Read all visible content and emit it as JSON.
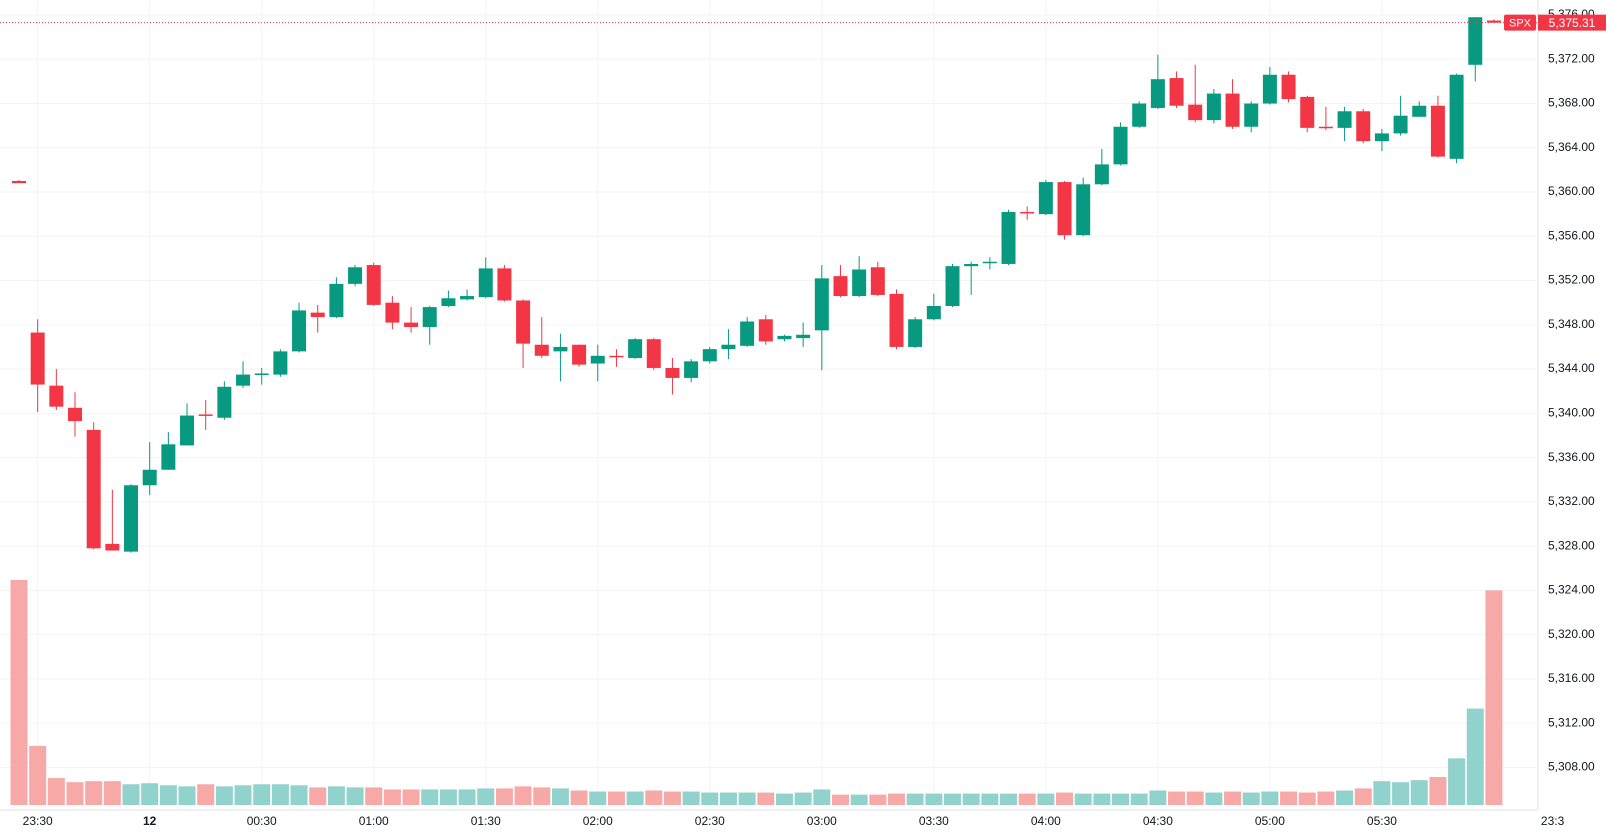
{
  "chart_data": {
    "type": "candlestick",
    "symbol": "SPX",
    "last_price": {
      "value": 5375.31,
      "label": "5,375.31"
    },
    "up_color": "#089981",
    "down_color": "#f23645",
    "volume_up_color": "#92d2cc",
    "volume_down_color": "#f7a9a7",
    "grid": true,
    "categories": [
      null,
      "23:30",
      null,
      null,
      null,
      null,
      null,
      "12",
      null,
      null,
      null,
      null,
      null,
      "00:30",
      null,
      null,
      null,
      null,
      null,
      "01:00",
      null,
      null,
      null,
      null,
      null,
      "01:30",
      null,
      null,
      null,
      null,
      null,
      "02:00",
      null,
      null,
      null,
      null,
      null,
      "02:30",
      null,
      null,
      null,
      null,
      null,
      "03:00",
      null,
      null,
      null,
      null,
      null,
      "03:30",
      null,
      null,
      null,
      null,
      null,
      "04:00",
      null,
      null,
      null,
      null,
      null,
      "04:30",
      null,
      null,
      null,
      null,
      null,
      "05:00",
      null,
      null,
      null,
      null,
      null,
      "05:30",
      null,
      null,
      null,
      null,
      null,
      null
    ],
    "next_session_label": "23:3",
    "ohlc": [
      [
        5361,
        5361.1,
        5360.8,
        5360.8
      ],
      [
        5347.3,
        5348.5,
        5340.1,
        5342.6
      ],
      [
        5342.5,
        5344,
        5340.3,
        5340.6
      ],
      [
        5340.5,
        5341.9,
        5337.9,
        5339.3
      ],
      [
        5338.5,
        5339.2,
        5327.7,
        5327.8
      ],
      [
        5328.2,
        5333.1,
        5327.6,
        5327.6
      ],
      [
        5327.5,
        5333.6,
        5327.4,
        5333.5
      ],
      [
        5333.5,
        5337.4,
        5332.6,
        5334.9
      ],
      [
        5334.9,
        5338.3,
        5334.9,
        5337.2
      ],
      [
        5337.1,
        5340.9,
        5337.1,
        5339.8
      ],
      [
        5339.9,
        5341.2,
        5338.5,
        5339.8
      ],
      [
        5339.6,
        5342.9,
        5339.4,
        5342.4
      ],
      [
        5342.5,
        5344.7,
        5342.3,
        5343.5
      ],
      [
        5343.5,
        5344.1,
        5342.6,
        5343.6
      ],
      [
        5343.5,
        5345.8,
        5343.3,
        5345.6
      ],
      [
        5345.6,
        5350,
        5345.5,
        5349.3
      ],
      [
        5349.1,
        5349.8,
        5347.3,
        5348.7
      ],
      [
        5348.7,
        5352.3,
        5348.6,
        5351.7
      ],
      [
        5351.7,
        5353.4,
        5351.5,
        5353.2
      ],
      [
        5353.4,
        5353.6,
        5349.7,
        5349.8
      ],
      [
        5350,
        5350.6,
        5347.6,
        5348.2
      ],
      [
        5348.2,
        5349.6,
        5347.3,
        5347.8
      ],
      [
        5347.8,
        5349.7,
        5346.2,
        5349.6
      ],
      [
        5349.7,
        5351.1,
        5349.6,
        5350.4
      ],
      [
        5350.3,
        5351.2,
        5350.2,
        5350.6
      ],
      [
        5350.5,
        5354.1,
        5350.4,
        5353.1
      ],
      [
        5353.1,
        5353.4,
        5350.1,
        5350.2
      ],
      [
        5350.2,
        5350.3,
        5344.1,
        5346.3
      ],
      [
        5346.2,
        5348.7,
        5345,
        5345.2
      ],
      [
        5345.6,
        5347.2,
        5342.9,
        5346
      ],
      [
        5346.2,
        5346.2,
        5344.2,
        5344.4
      ],
      [
        5344.5,
        5346.2,
        5342.9,
        5345.2
      ],
      [
        5345.2,
        5345.8,
        5344.2,
        5345.1
      ],
      [
        5345,
        5346.8,
        5344.9,
        5346.7
      ],
      [
        5346.7,
        5346.8,
        5343.9,
        5344.1
      ],
      [
        5344.1,
        5345,
        5341.7,
        5343.2
      ],
      [
        5343.2,
        5344.9,
        5342.8,
        5344.7
      ],
      [
        5344.7,
        5346,
        5344.5,
        5345.8
      ],
      [
        5345.8,
        5347.6,
        5344.9,
        5346.2
      ],
      [
        5346.1,
        5348.7,
        5346,
        5348.3
      ],
      [
        5348.5,
        5348.9,
        5346.2,
        5346.5
      ],
      [
        5346.7,
        5347.1,
        5346.5,
        5347
      ],
      [
        5346.8,
        5348.2,
        5346,
        5347.1
      ],
      [
        5347.5,
        5353.4,
        5343.9,
        5352.2
      ],
      [
        5352.4,
        5353.4,
        5350.5,
        5350.6
      ],
      [
        5350.6,
        5354.2,
        5350.5,
        5353
      ],
      [
        5353.2,
        5353.7,
        5350.6,
        5350.7
      ],
      [
        5350.8,
        5351.2,
        5345.8,
        5346
      ],
      [
        5346,
        5348.7,
        5345.9,
        5348.5
      ],
      [
        5348.5,
        5350.8,
        5348.4,
        5349.7
      ],
      [
        5349.7,
        5353.5,
        5349.6,
        5353.3
      ],
      [
        5353.3,
        5353.7,
        5350.7,
        5353.5
      ],
      [
        5353.6,
        5354.1,
        5353,
        5353.7
      ],
      [
        5353.5,
        5358.4,
        5353.4,
        5358.2
      ],
      [
        5358.2,
        5358.7,
        5357.5,
        5358.1
      ],
      [
        5358,
        5361.1,
        5357.9,
        5360.9
      ],
      [
        5360.9,
        5361,
        5355.7,
        5356.1
      ],
      [
        5356.1,
        5361.3,
        5356,
        5360.7
      ],
      [
        5360.7,
        5363.9,
        5360.6,
        5362.5
      ],
      [
        5362.5,
        5366.3,
        5362.4,
        5365.9
      ],
      [
        5365.9,
        5368.2,
        5365.8,
        5368
      ],
      [
        5367.6,
        5372.4,
        5367.5,
        5370.2
      ],
      [
        5370.3,
        5370.9,
        5367.6,
        5367.8
      ],
      [
        5367.9,
        5371.5,
        5366.3,
        5366.5
      ],
      [
        5366.5,
        5369.3,
        5366.2,
        5368.9
      ],
      [
        5368.9,
        5370.2,
        5365.7,
        5365.9
      ],
      [
        5365.9,
        5368.2,
        5365.4,
        5368
      ],
      [
        5368,
        5371.3,
        5367.9,
        5370.6
      ],
      [
        5370.6,
        5370.9,
        5368.1,
        5368.4
      ],
      [
        5368.6,
        5368.7,
        5365.4,
        5365.8
      ],
      [
        5365.9,
        5367.7,
        5365.6,
        5365.8
      ],
      [
        5365.8,
        5367.7,
        5364.6,
        5367.3
      ],
      [
        5367.3,
        5367.5,
        5364.4,
        5364.6
      ],
      [
        5364.6,
        5365.7,
        5363.7,
        5365.3
      ],
      [
        5365.3,
        5368.7,
        5365.1,
        5366.9
      ],
      [
        5366.8,
        5368.2,
        5366.8,
        5367.8
      ],
      [
        5367.8,
        5368.7,
        5363.1,
        5363.2
      ],
      [
        5363,
        5370.7,
        5362.6,
        5370.6
      ],
      [
        5371.5,
        5375.8,
        5370,
        5375.8
      ],
      [
        5375.5,
        5375.6,
        5375.3,
        5375.31
      ]
    ],
    "volume": [
      217,
      57,
      26,
      22,
      23,
      23,
      20,
      21,
      19,
      18,
      20,
      18,
      19,
      20,
      20,
      19,
      17,
      18,
      17,
      17,
      15,
      15,
      15,
      15,
      15,
      16,
      16,
      18,
      17,
      16,
      14,
      13,
      13,
      13,
      14,
      13,
      13,
      12,
      12,
      12,
      12,
      11,
      12,
      15,
      10,
      10,
      10,
      11,
      11,
      11,
      11,
      11,
      11,
      11,
      11,
      11,
      12,
      11,
      11,
      11,
      11,
      14,
      13,
      13,
      12,
      13,
      12,
      13,
      13,
      12,
      13,
      14,
      16,
      23,
      22,
      24,
      27,
      45,
      93,
      207
    ],
    "ylim": [
      5306.5,
      5376
    ],
    "yticks": [
      {
        "value": 5308,
        "label": "5,308.00"
      },
      {
        "value": 5312,
        "label": "5,312.00"
      },
      {
        "value": 5316,
        "label": "5,316.00"
      },
      {
        "value": 5320,
        "label": "5,320.00"
      },
      {
        "value": 5324,
        "label": "5,324.00"
      },
      {
        "value": 5328,
        "label": "5,328.00"
      },
      {
        "value": 5332,
        "label": "5,332.00"
      },
      {
        "value": 5336,
        "label": "5,336.00"
      },
      {
        "value": 5340,
        "label": "5,340.00"
      },
      {
        "value": 5344,
        "label": "5,344.00"
      },
      {
        "value": 5348,
        "label": "5,348.00"
      },
      {
        "value": 5352,
        "label": "5,352.00"
      },
      {
        "value": 5356,
        "label": "5,356.00"
      },
      {
        "value": 5360,
        "label": "5,360.00"
      },
      {
        "value": 5364,
        "label": "5,364.00"
      },
      {
        "value": 5368,
        "label": "5,368.00"
      },
      {
        "value": 5372,
        "label": "5,372.00"
      },
      {
        "value": 5376,
        "label": "5,376.00"
      }
    ]
  }
}
